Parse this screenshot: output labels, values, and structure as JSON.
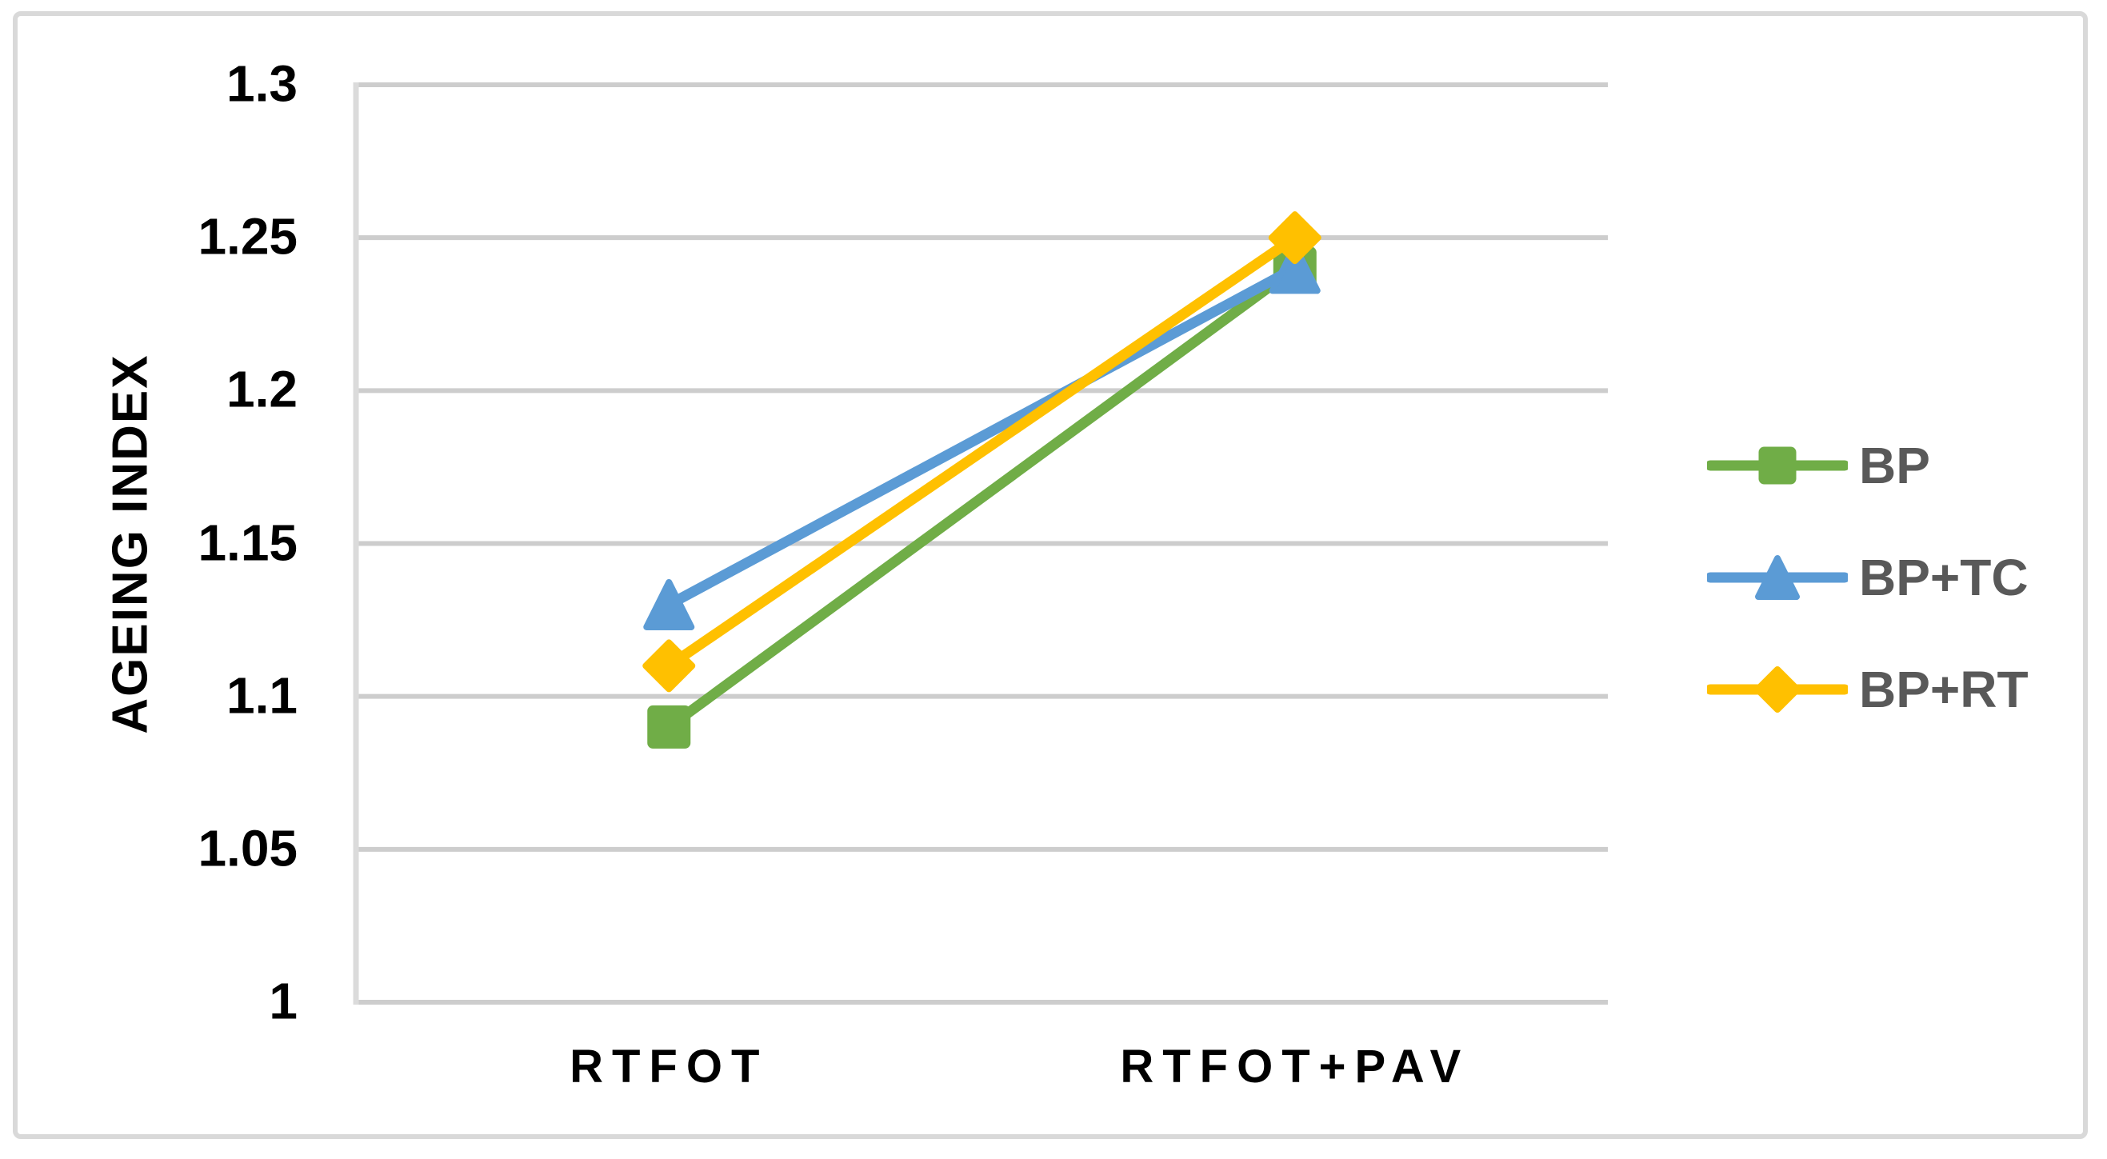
{
  "chart_data": {
    "type": "line",
    "title": "",
    "categories": [
      "RTFOT",
      "RTFOT+PAV"
    ],
    "series": [
      {
        "name": "BP",
        "values": [
          1.09,
          1.24
        ],
        "color": "#70AD47",
        "marker": "square"
      },
      {
        "name": "BP+TC",
        "values": [
          1.13,
          1.24
        ],
        "color": "#5B9BD5",
        "marker": "triangle"
      },
      {
        "name": "BP+RT",
        "values": [
          1.11,
          1.25
        ],
        "color": "#FFC000",
        "marker": "diamond"
      }
    ],
    "xlabel": "",
    "ylabel": "AGEING INDEX",
    "ylim": [
      1.0,
      1.3
    ],
    "ytick_step": 0.05,
    "ytick_labels": [
      "1",
      "1.05",
      "1.1",
      "1.15",
      "1.2",
      "1.25",
      "1.3"
    ],
    "grid": true,
    "legend_position": "right"
  },
  "colors": {
    "background": "#FFFFFF",
    "frame_border": "#D9D9D9",
    "gridline": "#CDCDCD",
    "axis_line": "#DBDBDB",
    "tick_label": "#000000",
    "legend_text": "#595959"
  }
}
